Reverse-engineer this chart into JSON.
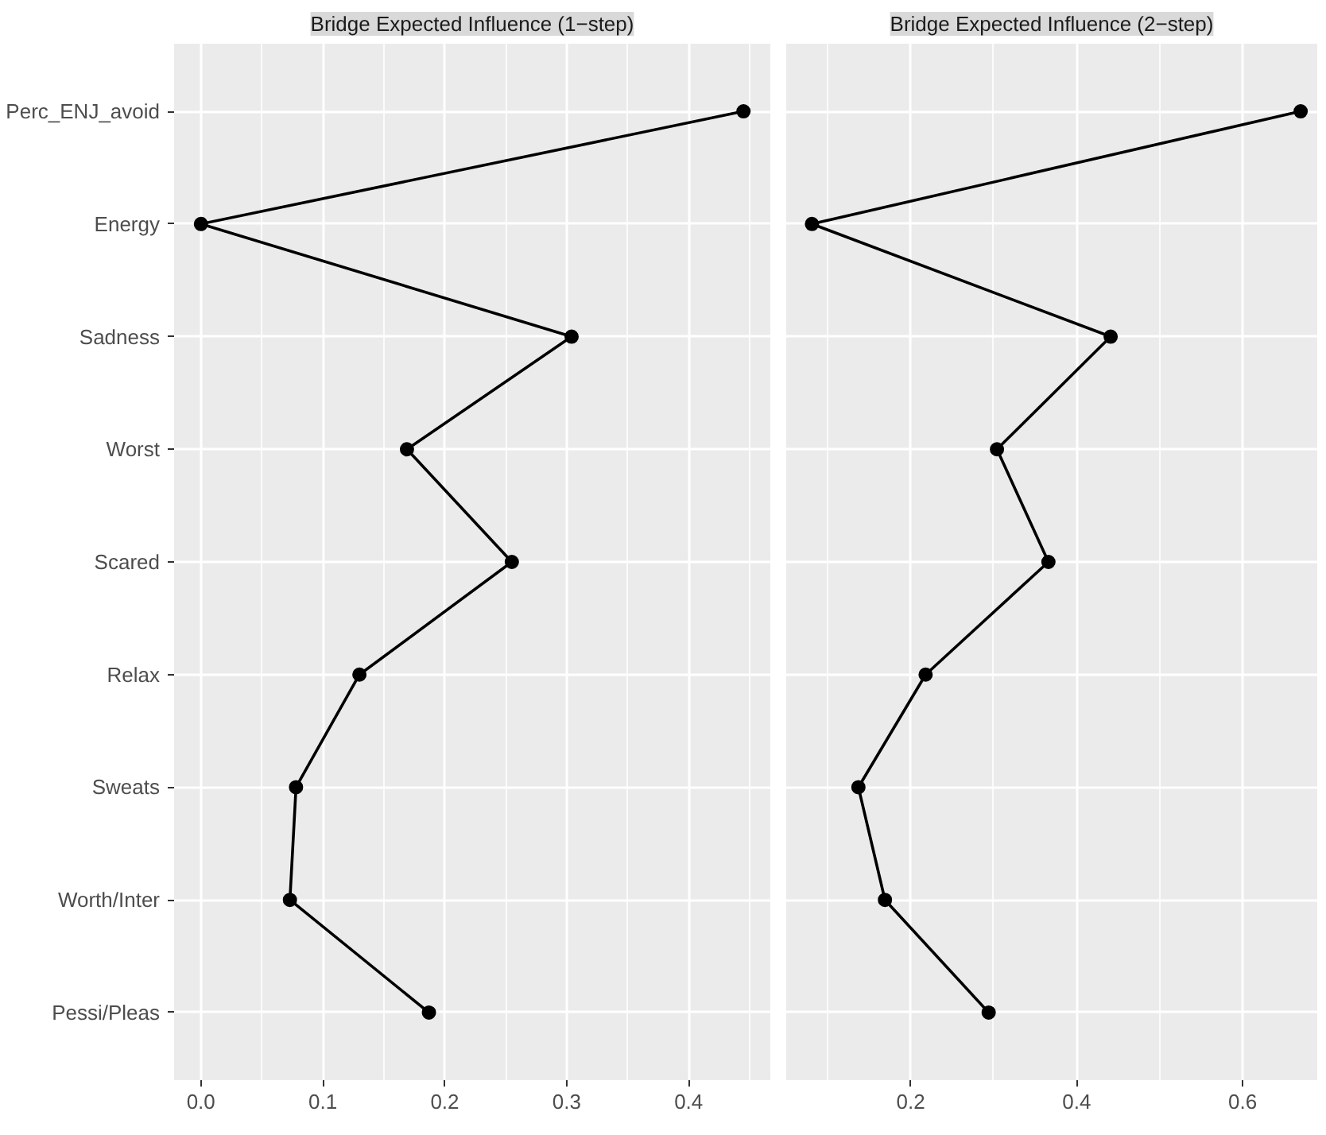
{
  "chart_data": [
    {
      "type": "line",
      "orientation": "horizontal",
      "title": "Bridge Expected Influence (1−step)",
      "categories": [
        "Perc_ENJ_avoid",
        "Energy",
        "Sadness",
        "Worst",
        "Scared",
        "Relax",
        "Sweats",
        "Worth/Inter",
        "Pessi/Pleas"
      ],
      "series": [
        {
          "color": "#000000",
          "values": [
            0.445,
            0.0,
            0.304,
            0.169,
            0.255,
            0.13,
            0.078,
            0.073,
            0.187
          ]
        }
      ],
      "xlim": [
        -0.022,
        0.467
      ],
      "xticks": [
        {
          "value": 0,
          "label": "0.0"
        },
        0.1,
        0.2,
        0.3,
        0.4
      ],
      "marker": "circle",
      "line_style": "solid",
      "grid": true
    },
    {
      "type": "line",
      "orientation": "horizontal",
      "title": "Bridge Expected Influence (2−step)",
      "categories": [
        null,
        null,
        null,
        null,
        null,
        null,
        null,
        null,
        null
      ],
      "series": [
        {
          "color": "#000000",
          "values": [
            0.67,
            0.081,
            0.441,
            0.304,
            0.366,
            0.218,
            0.137,
            0.169,
            0.294
          ]
        }
      ],
      "xlim": [
        0.05,
        0.69
      ],
      "xticks": [
        0.2,
        0.4,
        0.6
      ],
      "marker": "circle",
      "line_style": "solid",
      "grid": true,
      "tick_labels": "x"
    }
  ]
}
